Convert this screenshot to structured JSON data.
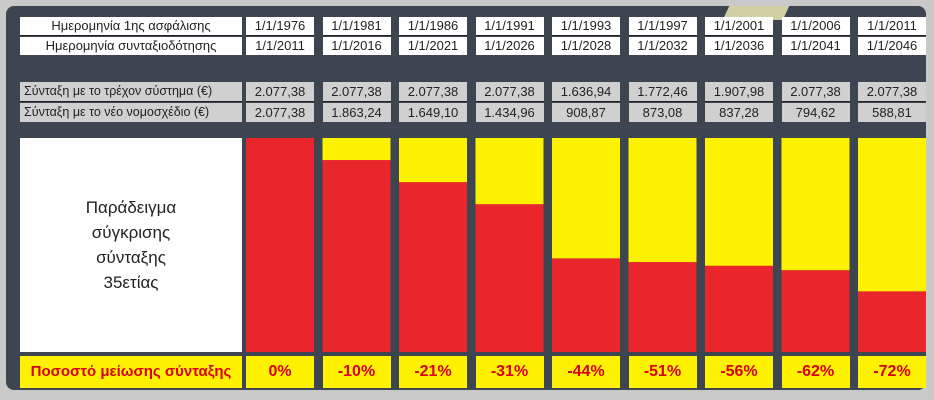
{
  "chart_data": {
    "type": "bar",
    "title": "Παράδειγμα σύγκρισης σύνταξης 35ετίας",
    "title_lines": [
      "Παράδειγμα",
      "σύγκρισης",
      "σύνταξης",
      "35ετίας"
    ],
    "unit": "€",
    "header_rows": [
      {
        "label": "Ημερομηνία 1ης ασφάλισης",
        "values": [
          "1/1/1976",
          "1/1/1981",
          "1/1/1986",
          "1/1/1991",
          "1/1/1993",
          "1/1/1997",
          "1/1/2001",
          "1/1/2006",
          "1/1/2011"
        ]
      },
      {
        "label": "Ημερομηνία συνταξιοδότησης",
        "values": [
          "1/1/2011",
          "1/1/2016",
          "1/1/2021",
          "1/1/2026",
          "1/1/2028",
          "1/1/2032",
          "1/1/2036",
          "1/1/2041",
          "1/1/2046"
        ]
      }
    ],
    "series": [
      {
        "name": "Σύνταξη με το τρέχον σύστημα (€)",
        "display": [
          "2.077,38",
          "2.077,38",
          "2.077,38",
          "2.077,38",
          "1.636,94",
          "1.772,46",
          "1.907,98",
          "2.077,38",
          "2.077,38"
        ],
        "values": [
          2077.38,
          2077.38,
          2077.38,
          2077.38,
          1636.94,
          1772.46,
          1907.98,
          2077.38,
          2077.38
        ],
        "color": "#fff200"
      },
      {
        "name": "Σύνταξη με το νέο νομοσχέδιο (€)",
        "display": [
          "2.077,38",
          "1.863,24",
          "1.649,10",
          "1.434,96",
          "908,87",
          "873,08",
          "837,28",
          "794,62",
          "588,81"
        ],
        "values": [
          2077.38,
          1863.24,
          1649.1,
          1434.96,
          908.87,
          873.08,
          837.28,
          794.62,
          588.81
        ],
        "color": "#e8262c"
      }
    ],
    "reduction": {
      "label": "Ποσοστό μείωσης σύνταξης",
      "display": [
        "0%",
        "-10%",
        "-21%",
        "-31%",
        "-44%",
        "-51%",
        "-56%",
        "-62%",
        "-72%"
      ],
      "values": [
        0,
        -10,
        -21,
        -31,
        -44,
        -51,
        -56,
        -62,
        -72
      ]
    }
  }
}
